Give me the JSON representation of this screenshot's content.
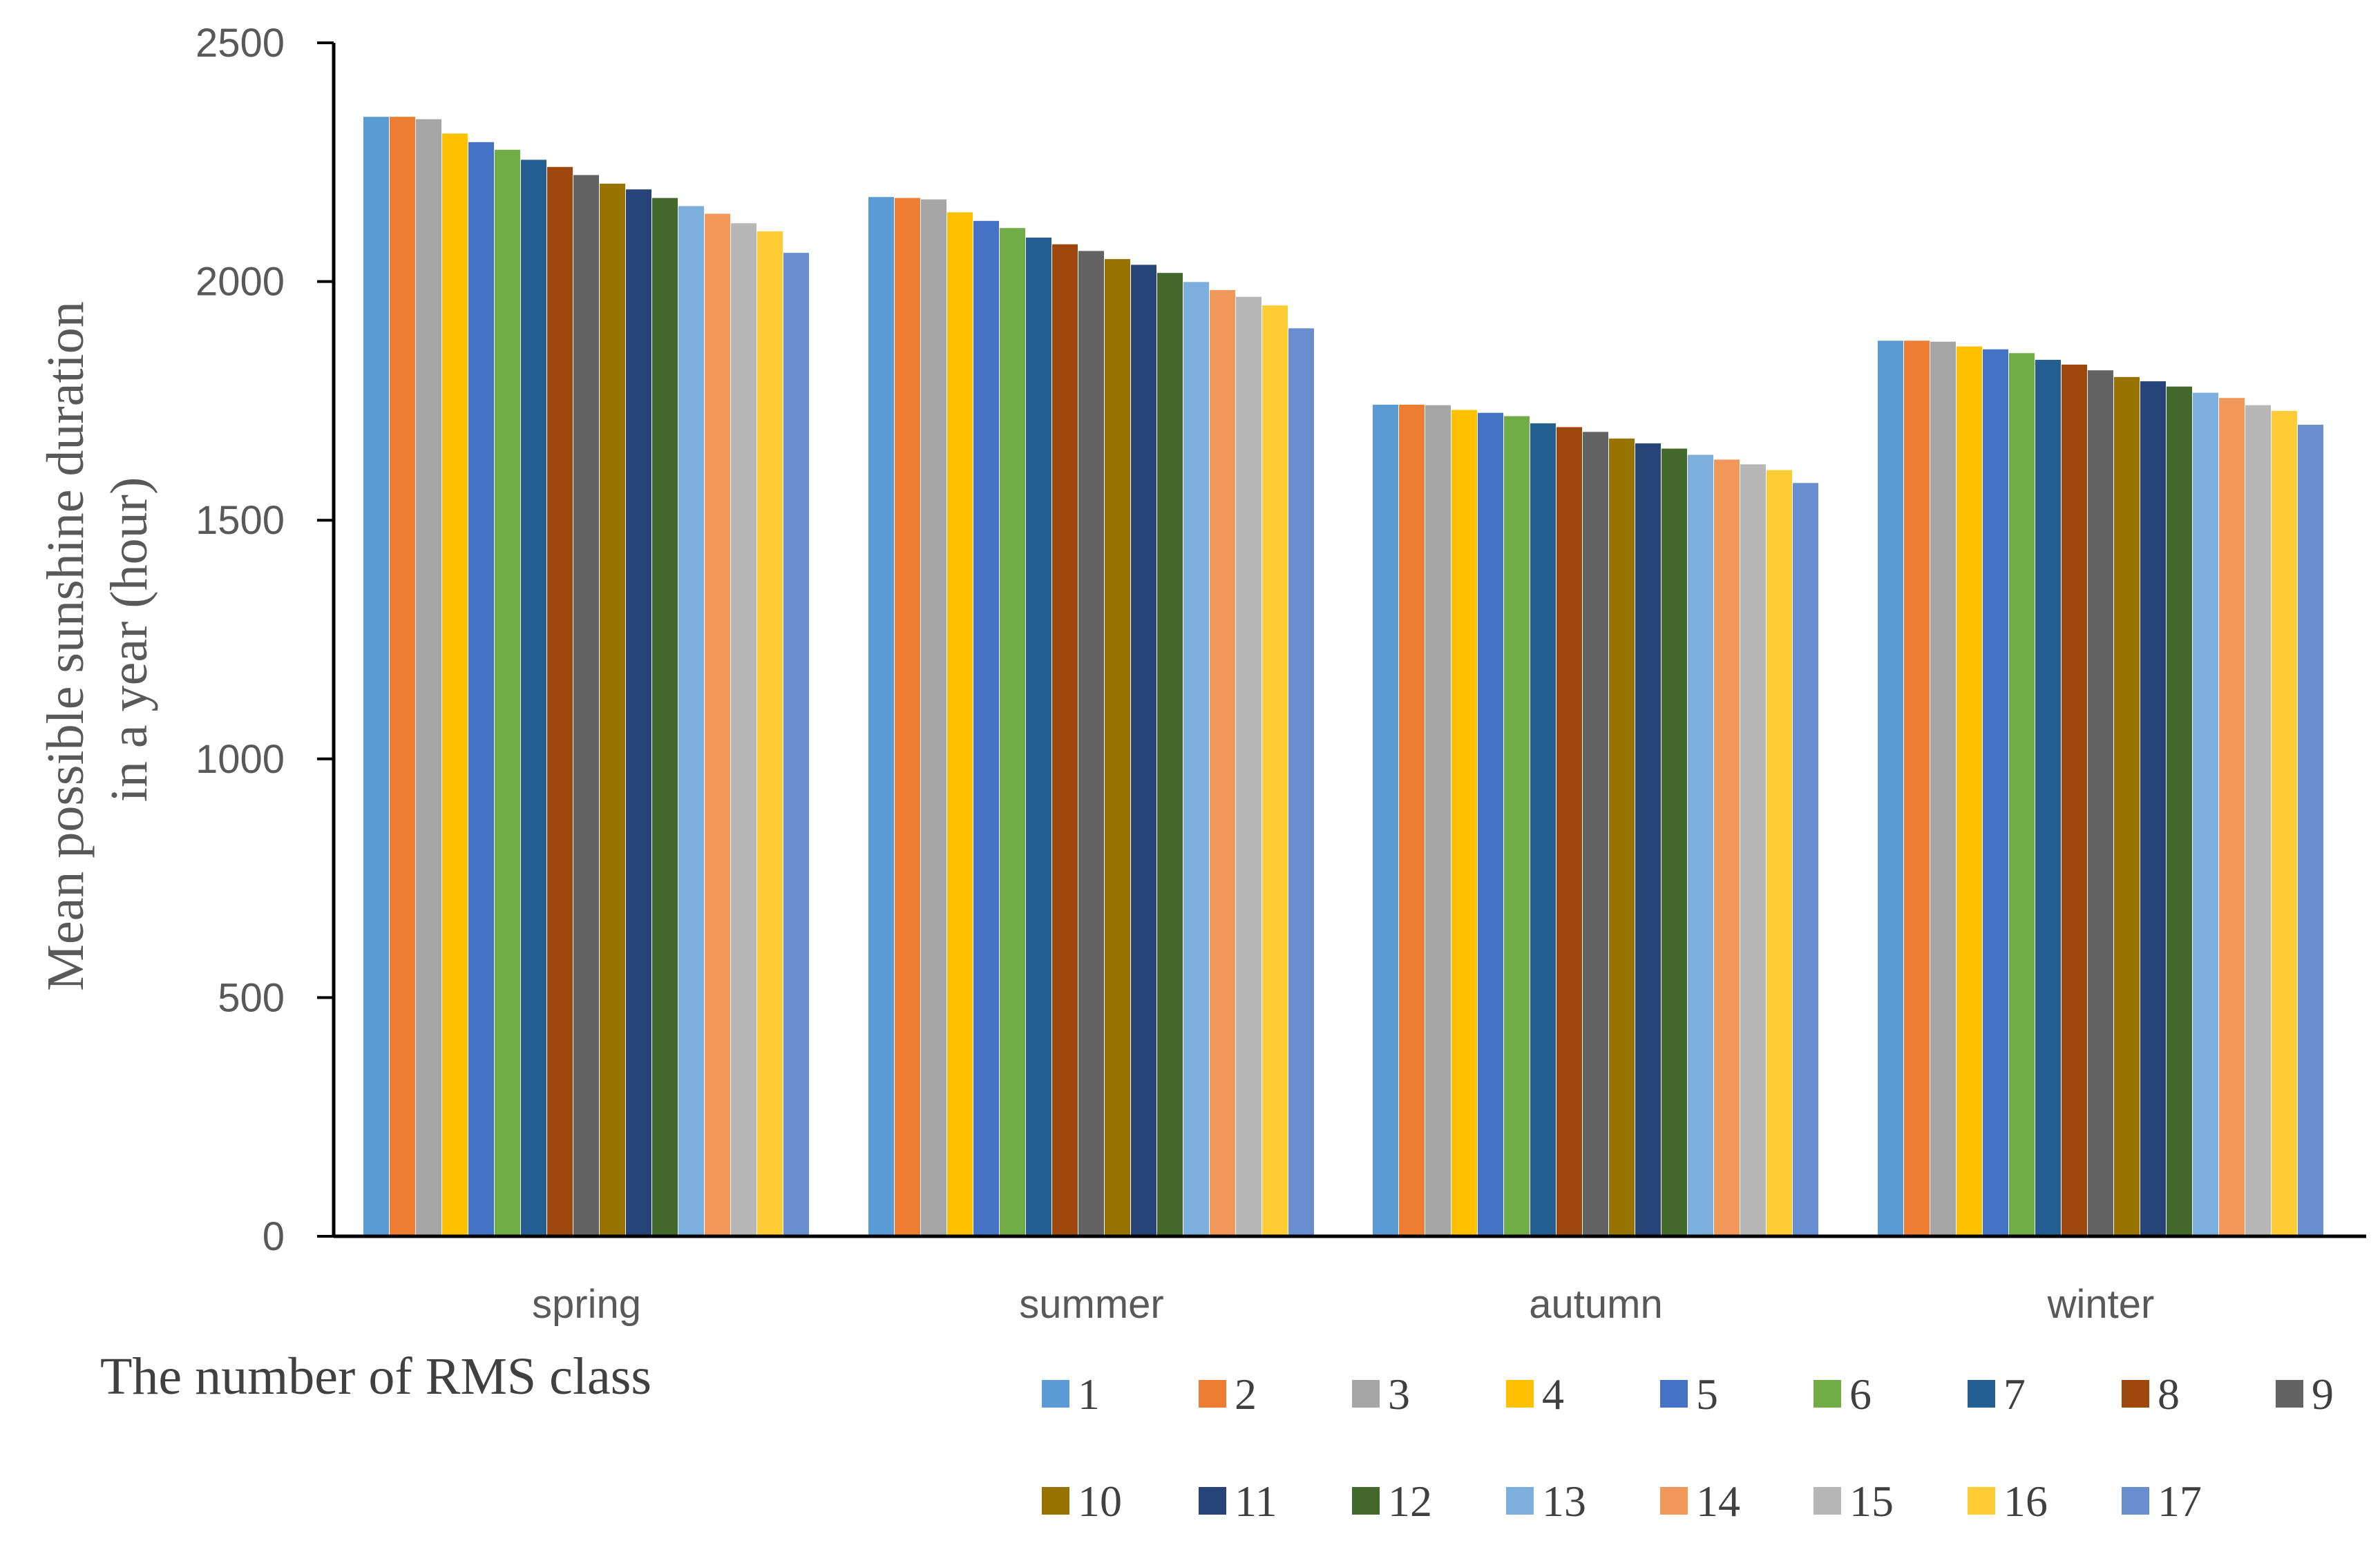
{
  "chart_data": {
    "type": "bar",
    "title": "",
    "xlabel": "",
    "ylabel": "Mean possible sunshine duration in a year (hour)",
    "ylabel_lines": [
      "Mean possible sunshine duration",
      "in a year (hour)"
    ],
    "ylim": [
      0,
      2500
    ],
    "yticks": [
      "0",
      "500",
      "1000",
      "1500",
      "2000",
      "2500"
    ],
    "grid": false,
    "legend": {
      "title": "The number of RMS class",
      "placement": "bottom"
    },
    "categories": [
      "spring",
      "summer",
      "autumn",
      "winter"
    ],
    "series": [
      {
        "name": "1",
        "color": "#5B9BD5",
        "values": [
          2345,
          2177,
          1742,
          1876
        ]
      },
      {
        "name": "2",
        "color": "#ED7D31",
        "values": [
          2345,
          2175,
          1742,
          1876
        ]
      },
      {
        "name": "3",
        "color": "#A5A5A5",
        "values": [
          2340,
          2172,
          1741,
          1874
        ]
      },
      {
        "name": "4",
        "color": "#FFC000",
        "values": [
          2310,
          2145,
          1731,
          1864
        ]
      },
      {
        "name": "5",
        "color": "#4472C4",
        "values": [
          2292,
          2127,
          1725,
          1858
        ]
      },
      {
        "name": "6",
        "color": "#70AD47",
        "values": [
          2276,
          2112,
          1718,
          1850
        ]
      },
      {
        "name": "7",
        "color": "#255E91",
        "values": [
          2255,
          2092,
          1703,
          1836
        ]
      },
      {
        "name": "8",
        "color": "#9E480E",
        "values": [
          2240,
          2078,
          1695,
          1826
        ]
      },
      {
        "name": "9",
        "color": "#636363",
        "values": [
          2223,
          2064,
          1685,
          1814
        ]
      },
      {
        "name": "10",
        "color": "#997300",
        "values": [
          2205,
          2047,
          1671,
          1800
        ]
      },
      {
        "name": "11",
        "color": "#264478",
        "values": [
          2193,
          2035,
          1661,
          1791
        ]
      },
      {
        "name": "12",
        "color": "#43682B",
        "values": [
          2175,
          2018,
          1650,
          1780
        ]
      },
      {
        "name": "13",
        "color": "#7CAFDD",
        "values": [
          2158,
          1999,
          1637,
          1767
        ]
      },
      {
        "name": "14",
        "color": "#F1975A",
        "values": [
          2142,
          1982,
          1627,
          1756
        ]
      },
      {
        "name": "15",
        "color": "#B7B7B7",
        "values": [
          2122,
          1968,
          1617,
          1741
        ]
      },
      {
        "name": "16",
        "color": "#FFCD33",
        "values": [
          2105,
          1950,
          1605,
          1729
        ]
      },
      {
        "name": "17",
        "color": "#698ED0",
        "values": [
          2060,
          1902,
          1578,
          1700
        ]
      }
    ]
  }
}
